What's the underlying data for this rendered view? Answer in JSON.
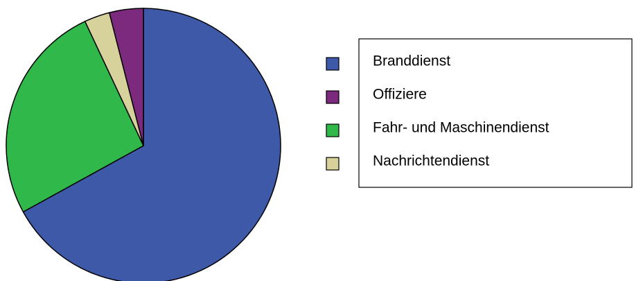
{
  "chart_data": {
    "type": "pie",
    "categories": [
      "Branddienst",
      "Offiziere",
      "Fahr- und Maschinendienst",
      "Nachrichtendienst"
    ],
    "values": [
      67,
      4,
      26,
      3
    ],
    "colors": [
      "#3f59a9",
      "#7c2a7e",
      "#30b84b",
      "#d7d19c"
    ]
  }
}
